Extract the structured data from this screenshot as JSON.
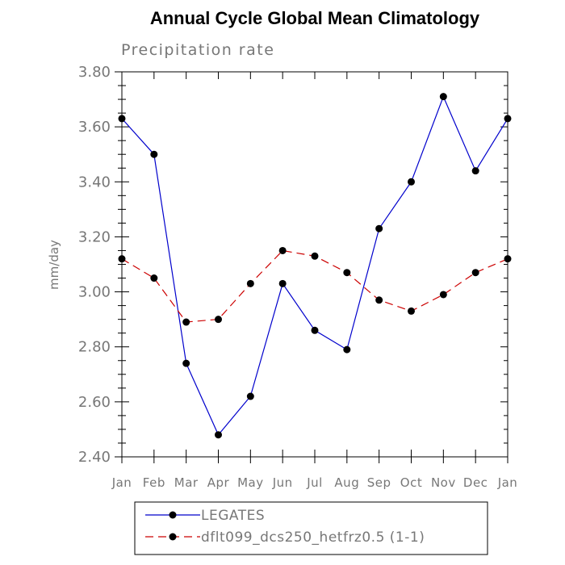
{
  "chart_data": {
    "type": "line",
    "title": "Annual Cycle Global Mean Climatology",
    "subtitle": "Precipitation rate",
    "xlabel": "",
    "ylabel": "mm/day",
    "categories": [
      "Jan",
      "Feb",
      "Mar",
      "Apr",
      "May",
      "Jun",
      "Jul",
      "Aug",
      "Sep",
      "Oct",
      "Nov",
      "Dec",
      "Jan"
    ],
    "ylim": [
      2.4,
      3.8
    ],
    "yticks": [
      "2.40",
      "2.60",
      "2.80",
      "3.00",
      "3.20",
      "3.40",
      "3.60",
      "3.80"
    ],
    "grid": false,
    "legend_position": "bottom",
    "series": [
      {
        "name": "LEGATES",
        "color": "#0000cc",
        "line_style": "solid",
        "marker": "filled-circle",
        "values": [
          3.63,
          3.5,
          2.74,
          2.48,
          2.62,
          3.03,
          2.86,
          2.79,
          3.23,
          3.4,
          3.71,
          3.44,
          3.63
        ]
      },
      {
        "name": "dflt099_dcs250_hetfrz0.5 (1-1)",
        "color": "#cc0000",
        "line_style": "dashed",
        "marker": "filled-circle",
        "values": [
          3.12,
          3.05,
          2.89,
          2.9,
          3.03,
          3.15,
          3.13,
          3.07,
          2.97,
          2.93,
          2.99,
          3.07,
          3.12
        ]
      }
    ]
  }
}
